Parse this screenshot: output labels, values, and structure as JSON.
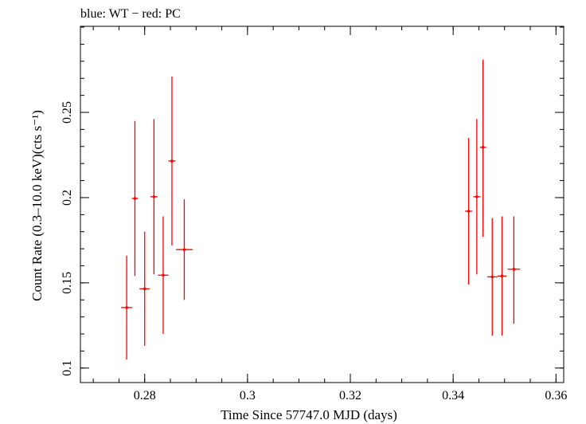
{
  "chart_data": {
    "type": "scatter",
    "title": "blue: WT − red: PC",
    "xlabel": "Time Since 57747.0 MJD (days)",
    "ylabel": "Count Rate (0.3–10.0 keV)(cts s⁻¹)",
    "xlim": [
      0.2675,
      0.3615
    ],
    "ylim": [
      0.0915,
      0.3005
    ],
    "x_ticks": [
      0.28,
      0.3,
      0.32,
      0.34,
      0.36
    ],
    "x_tick_labels": [
      "0.28",
      "0.3",
      "0.32",
      "0.34",
      "0.36"
    ],
    "y_ticks": [
      0.1,
      0.15,
      0.2,
      0.25
    ],
    "y_tick_labels": [
      "0.1",
      "0.15",
      "0.2",
      "0.25"
    ],
    "x_minor_step": 0.005,
    "y_minor_step": 0.01,
    "grid": false,
    "series": [
      {
        "color": "#ff0000",
        "points": [
          {
            "x": 0.2765,
            "y": 0.1355,
            "xerr": 0.0011,
            "ylo": 0.105,
            "yhi": 0.166
          },
          {
            "x": 0.2781,
            "y": 0.1995,
            "xerr": 0.0006,
            "ylo": 0.154,
            "yhi": 0.245
          },
          {
            "x": 0.28,
            "y": 0.1465,
            "xerr": 0.001,
            "ylo": 0.113,
            "yhi": 0.18
          },
          {
            "x": 0.2818,
            "y": 0.2005,
            "xerr": 0.0007,
            "ylo": 0.155,
            "yhi": 0.246
          },
          {
            "x": 0.2836,
            "y": 0.1545,
            "xerr": 0.001,
            "ylo": 0.12,
            "yhi": 0.189
          },
          {
            "x": 0.2853,
            "y": 0.2215,
            "xerr": 0.0007,
            "ylo": 0.172,
            "yhi": 0.271
          },
          {
            "x": 0.2877,
            "y": 0.1695,
            "xerr": 0.0016,
            "ylo": 0.14,
            "yhi": 0.199
          },
          {
            "x": 0.343,
            "y": 0.192,
            "xerr": 0.0007,
            "ylo": 0.149,
            "yhi": 0.235
          },
          {
            "x": 0.3446,
            "y": 0.2005,
            "xerr": 0.0007,
            "ylo": 0.155,
            "yhi": 0.246
          },
          {
            "x": 0.3458,
            "y": 0.2295,
            "xerr": 0.0006,
            "ylo": 0.177,
            "yhi": 0.281
          },
          {
            "x": 0.3476,
            "y": 0.1535,
            "xerr": 0.001,
            "ylo": 0.119,
            "yhi": 0.188
          },
          {
            "x": 0.3495,
            "y": 0.154,
            "xerr": 0.0009,
            "ylo": 0.119,
            "yhi": 0.189
          },
          {
            "x": 0.3518,
            "y": 0.158,
            "xerr": 0.0012,
            "ylo": 0.126,
            "yhi": 0.189
          }
        ]
      }
    ]
  }
}
